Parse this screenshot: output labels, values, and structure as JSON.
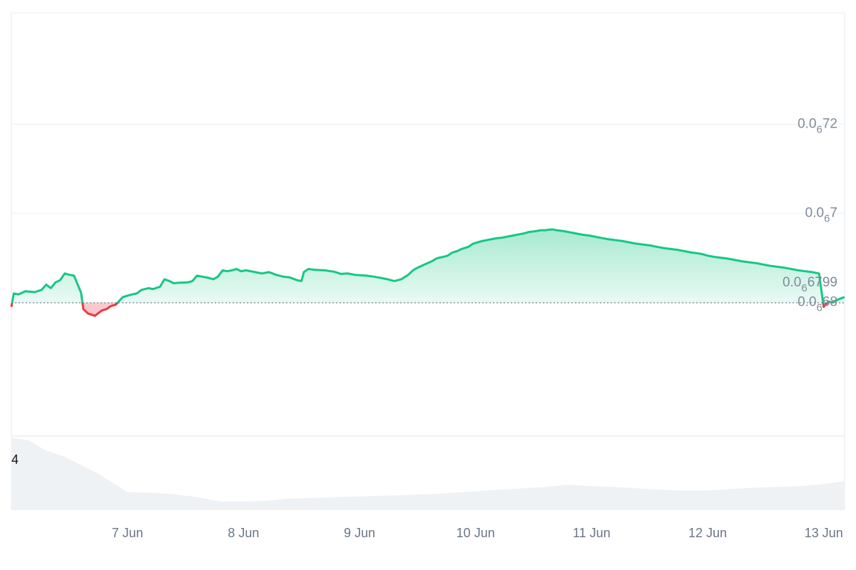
{
  "chart_data": {
    "type": "area",
    "baseline": 6.799e-07,
    "baseline_label": {
      "prefix": "0.0",
      "sub": "6",
      "suffix": "6799"
    },
    "colors": {
      "up": "#16c784",
      "down": "#ea3943",
      "up_fill": "#16c784",
      "down_fill": "#ea3943",
      "grid": "#eef0f3",
      "volume": "#eff2f5"
    },
    "ylim": [
      6.5e-07,
      7.45e-07
    ],
    "y_ticks": [
      {
        "value": 7.2e-07,
        "prefix": "0.0",
        "sub": "6",
        "suffix": "72"
      },
      {
        "value": 7e-07,
        "prefix": "0.0",
        "sub": "6",
        "suffix": "7"
      },
      {
        "value": 6.8e-07,
        "prefix": "0.0",
        "sub": "6",
        "suffix": "68"
      }
    ],
    "x_ticks": [
      {
        "t": 1.0,
        "label": "7 Jun"
      },
      {
        "t": 2.0,
        "label": "8 Jun"
      },
      {
        "t": 3.0,
        "label": "9 Jun"
      },
      {
        "t": 4.0,
        "label": "10 Jun"
      },
      {
        "t": 5.0,
        "label": "11 Jun"
      },
      {
        "t": 6.0,
        "label": "12 Jun"
      },
      {
        "t": 7.0,
        "label": "13 Jun"
      }
    ],
    "xlim": [
      0.0,
      7.18
    ],
    "price": [
      [
        0.0,
        6.79e-07
      ],
      [
        0.02,
        6.82e-07
      ],
      [
        0.06,
        6.818e-07
      ],
      [
        0.12,
        6.825e-07
      ],
      [
        0.2,
        6.823e-07
      ],
      [
        0.26,
        6.828e-07
      ],
      [
        0.3,
        6.84e-07
      ],
      [
        0.34,
        6.832e-07
      ],
      [
        0.38,
        6.845e-07
      ],
      [
        0.42,
        6.85e-07
      ],
      [
        0.46,
        6.865e-07
      ],
      [
        0.5,
        6.862e-07
      ],
      [
        0.54,
        6.86e-07
      ],
      [
        0.6,
        6.822e-07
      ],
      [
        0.62,
        6.785e-07
      ],
      [
        0.66,
        6.775e-07
      ],
      [
        0.72,
        6.77e-07
      ],
      [
        0.78,
        6.782e-07
      ],
      [
        0.82,
        6.785e-07
      ],
      [
        0.86,
        6.792e-07
      ],
      [
        0.9,
        6.795e-07
      ],
      [
        0.96,
        6.812e-07
      ],
      [
        1.0,
        6.815e-07
      ],
      [
        1.04,
        6.818e-07
      ],
      [
        1.08,
        6.82e-07
      ],
      [
        1.12,
        6.828e-07
      ],
      [
        1.18,
        6.832e-07
      ],
      [
        1.22,
        6.83e-07
      ],
      [
        1.28,
        6.835e-07
      ],
      [
        1.32,
        6.852e-07
      ],
      [
        1.36,
        6.848e-07
      ],
      [
        1.4,
        6.843e-07
      ],
      [
        1.44,
        6.844e-07
      ],
      [
        1.52,
        6.845e-07
      ],
      [
        1.56,
        6.848e-07
      ],
      [
        1.6,
        6.86e-07
      ],
      [
        1.64,
        6.858e-07
      ],
      [
        1.7,
        6.855e-07
      ],
      [
        1.74,
        6.852e-07
      ],
      [
        1.78,
        6.858e-07
      ],
      [
        1.82,
        6.872e-07
      ],
      [
        1.86,
        6.87e-07
      ],
      [
        1.9,
        6.872e-07
      ],
      [
        1.94,
        6.875e-07
      ],
      [
        1.98,
        6.87e-07
      ],
      [
        2.02,
        6.872e-07
      ],
      [
        2.1,
        6.868e-07
      ],
      [
        2.16,
        6.865e-07
      ],
      [
        2.22,
        6.868e-07
      ],
      [
        2.28,
        6.862e-07
      ],
      [
        2.34,
        6.858e-07
      ],
      [
        2.4,
        6.856e-07
      ],
      [
        2.46,
        6.85e-07
      ],
      [
        2.5,
        6.848e-07
      ],
      [
        2.52,
        6.868e-07
      ],
      [
        2.56,
        6.875e-07
      ],
      [
        2.62,
        6.873e-07
      ],
      [
        2.7,
        6.872e-07
      ],
      [
        2.78,
        6.869e-07
      ],
      [
        2.84,
        6.864e-07
      ],
      [
        2.9,
        6.865e-07
      ],
      [
        2.96,
        6.862e-07
      ],
      [
        3.0,
        6.861e-07
      ],
      [
        3.06,
        6.86e-07
      ],
      [
        3.12,
        6.858e-07
      ],
      [
        3.18,
        6.855e-07
      ],
      [
        3.24,
        6.852e-07
      ],
      [
        3.3,
        6.848e-07
      ],
      [
        3.36,
        6.852e-07
      ],
      [
        3.42,
        6.862e-07
      ],
      [
        3.46,
        6.872e-07
      ],
      [
        3.5,
        6.878e-07
      ],
      [
        3.56,
        6.885e-07
      ],
      [
        3.62,
        6.892e-07
      ],
      [
        3.66,
        6.898e-07
      ],
      [
        3.68,
        6.9e-07
      ],
      [
        3.72,
        6.902e-07
      ],
      [
        3.76,
        6.905e-07
      ],
      [
        3.8,
        6.912e-07
      ],
      [
        3.84,
        6.915e-07
      ],
      [
        3.88,
        6.92e-07
      ],
      [
        3.94,
        6.925e-07
      ],
      [
        3.98,
        6.932e-07
      ],
      [
        4.02,
        6.935e-07
      ],
      [
        4.06,
        6.938e-07
      ],
      [
        4.1,
        6.94e-07
      ],
      [
        4.14,
        6.942e-07
      ],
      [
        4.18,
        6.944e-07
      ],
      [
        4.22,
        6.945e-07
      ],
      [
        4.28,
        6.948e-07
      ],
      [
        4.32,
        6.95e-07
      ],
      [
        4.36,
        6.952e-07
      ],
      [
        4.42,
        6.955e-07
      ],
      [
        4.46,
        6.958e-07
      ],
      [
        4.52,
        6.96e-07
      ],
      [
        4.56,
        6.962e-07
      ],
      [
        4.6,
        6.962e-07
      ],
      [
        4.66,
        6.964e-07
      ],
      [
        4.7,
        6.962e-07
      ],
      [
        4.76,
        6.96e-07
      ],
      [
        4.8,
        6.958e-07
      ],
      [
        4.86,
        6.955e-07
      ],
      [
        4.92,
        6.952e-07
      ],
      [
        4.98,
        6.95e-07
      ],
      [
        5.02,
        6.948e-07
      ],
      [
        5.08,
        6.945e-07
      ],
      [
        5.14,
        6.942e-07
      ],
      [
        5.2,
        6.94e-07
      ],
      [
        5.26,
        6.938e-07
      ],
      [
        5.32,
        6.935e-07
      ],
      [
        5.38,
        6.932e-07
      ],
      [
        5.44,
        6.93e-07
      ],
      [
        5.5,
        6.928e-07
      ],
      [
        5.56,
        6.925e-07
      ],
      [
        5.62,
        6.922e-07
      ],
      [
        5.68,
        6.92e-07
      ],
      [
        5.74,
        6.918e-07
      ],
      [
        5.8,
        6.915e-07
      ],
      [
        5.86,
        6.912e-07
      ],
      [
        5.92,
        6.91e-07
      ],
      [
        5.96,
        6.908e-07
      ],
      [
        6.0,
        6.905e-07
      ],
      [
        6.06,
        6.902e-07
      ],
      [
        6.12,
        6.9e-07
      ],
      [
        6.18,
        6.898e-07
      ],
      [
        6.24,
        6.895e-07
      ],
      [
        6.3,
        6.892e-07
      ],
      [
        6.36,
        6.89e-07
      ],
      [
        6.42,
        6.888e-07
      ],
      [
        6.48,
        6.885e-07
      ],
      [
        6.54,
        6.882e-07
      ],
      [
        6.6,
        6.88e-07
      ],
      [
        6.66,
        6.878e-07
      ],
      [
        6.72,
        6.875e-07
      ],
      [
        6.78,
        6.872e-07
      ],
      [
        6.84,
        6.87e-07
      ],
      [
        6.9,
        6.868e-07
      ],
      [
        6.96,
        6.865e-07
      ],
      [
        7.0,
        6.79e-07
      ],
      [
        7.04,
        6.802e-07
      ],
      [
        7.08,
        6.8e-07
      ],
      [
        7.12,
        6.806e-07
      ],
      [
        7.16,
        6.81e-07
      ],
      [
        7.18,
        6.812e-07
      ]
    ],
    "volume": [
      [
        0.0,
        1.0
      ],
      [
        0.15,
        0.96
      ],
      [
        0.3,
        0.82
      ],
      [
        0.45,
        0.74
      ],
      [
        0.6,
        0.62
      ],
      [
        0.75,
        0.5
      ],
      [
        0.9,
        0.35
      ],
      [
        1.0,
        0.25
      ],
      [
        1.2,
        0.24
      ],
      [
        1.4,
        0.22
      ],
      [
        1.6,
        0.18
      ],
      [
        1.8,
        0.12
      ],
      [
        2.0,
        0.12
      ],
      [
        2.2,
        0.13
      ],
      [
        2.4,
        0.16
      ],
      [
        2.6,
        0.17
      ],
      [
        2.8,
        0.18
      ],
      [
        3.0,
        0.19
      ],
      [
        3.2,
        0.2
      ],
      [
        3.4,
        0.21
      ],
      [
        3.6,
        0.22
      ],
      [
        3.8,
        0.24
      ],
      [
        4.0,
        0.26
      ],
      [
        4.2,
        0.28
      ],
      [
        4.4,
        0.3
      ],
      [
        4.6,
        0.32
      ],
      [
        4.8,
        0.35
      ],
      [
        5.0,
        0.33
      ],
      [
        5.2,
        0.32
      ],
      [
        5.4,
        0.3
      ],
      [
        5.6,
        0.28
      ],
      [
        5.8,
        0.27
      ],
      [
        6.0,
        0.27
      ],
      [
        6.2,
        0.29
      ],
      [
        6.4,
        0.31
      ],
      [
        6.6,
        0.32
      ],
      [
        6.8,
        0.33
      ],
      [
        7.0,
        0.36
      ],
      [
        7.18,
        0.4
      ]
    ],
    "volume_label": "4"
  }
}
